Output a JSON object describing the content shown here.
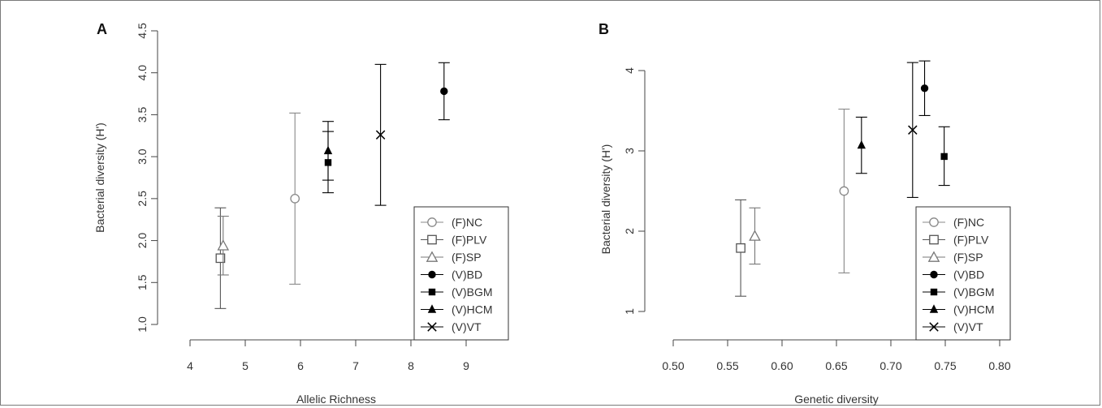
{
  "chart_data": [
    {
      "type": "scatter",
      "panel": "A",
      "xlabel": "Allelic Richness",
      "ylabel": "Bacterial diversity (H')",
      "xlim": [
        4,
        9
      ],
      "ylim": [
        1.0,
        4.5
      ],
      "xticks": [
        "4",
        "5",
        "6",
        "7",
        "8",
        "9"
      ],
      "yticks": [
        "1.0",
        "1.5",
        "2.0",
        "2.5",
        "3.0",
        "3.5",
        "4.0",
        "4.5"
      ],
      "legend_position": "bottom-right",
      "series": [
        {
          "name": "(F)NC",
          "marker": "open-circle",
          "x": 5.9,
          "y": 2.5,
          "err_low": 1.48,
          "err_high": 3.52,
          "color": "#888888"
        },
        {
          "name": "(F)PLV",
          "marker": "open-square",
          "x": 4.55,
          "y": 1.79,
          "err_low": 1.19,
          "err_high": 2.39,
          "color": "#555555"
        },
        {
          "name": "(F)SP",
          "marker": "open-triangle",
          "x": 4.6,
          "y": 1.94,
          "err_low": 1.59,
          "err_high": 2.29,
          "color": "#777777"
        },
        {
          "name": "(V)BD",
          "marker": "filled-circle",
          "x": 8.6,
          "y": 3.78,
          "err_low": 3.44,
          "err_high": 4.12,
          "color": "#000000"
        },
        {
          "name": "(V)BGM",
          "marker": "filled-square",
          "x": 6.5,
          "y": 2.93,
          "err_low": 2.57,
          "err_high": 3.3,
          "color": "#000000"
        },
        {
          "name": "(V)HCM",
          "marker": "filled-triangle",
          "x": 6.5,
          "y": 3.07,
          "err_low": 2.72,
          "err_high": 3.42,
          "color": "#000000"
        },
        {
          "name": "(V)VT",
          "marker": "cross",
          "x": 7.45,
          "y": 3.26,
          "err_low": 2.42,
          "err_high": 4.1,
          "color": "#000000"
        }
      ]
    },
    {
      "type": "scatter",
      "panel": "B",
      "xlabel": "Genetic diversity",
      "ylabel": "Bacterial diversity (H')",
      "xlim": [
        0.5,
        0.8
      ],
      "ylim": [
        1,
        4
      ],
      "xticks": [
        "0.50",
        "0.55",
        "0.60",
        "0.65",
        "0.70",
        "0.75",
        "0.80"
      ],
      "yticks": [
        "1",
        "2",
        "3",
        "4"
      ],
      "legend_position": "bottom-right",
      "series": [
        {
          "name": "(F)NC",
          "marker": "open-circle",
          "x": 0.657,
          "y": 2.5,
          "err_low": 1.48,
          "err_high": 3.52,
          "color": "#888888"
        },
        {
          "name": "(F)PLV",
          "marker": "open-square",
          "x": 0.562,
          "y": 1.79,
          "err_low": 1.19,
          "err_high": 2.39,
          "color": "#555555"
        },
        {
          "name": "(F)SP",
          "marker": "open-triangle",
          "x": 0.575,
          "y": 1.94,
          "err_low": 1.59,
          "err_high": 2.29,
          "color": "#777777"
        },
        {
          "name": "(V)BD",
          "marker": "filled-circle",
          "x": 0.731,
          "y": 3.78,
          "err_low": 3.44,
          "err_high": 4.12,
          "color": "#000000"
        },
        {
          "name": "(V)BGM",
          "marker": "filled-square",
          "x": 0.749,
          "y": 2.93,
          "err_low": 2.57,
          "err_high": 3.3,
          "color": "#000000"
        },
        {
          "name": "(V)HCM",
          "marker": "filled-triangle",
          "x": 0.673,
          "y": 3.07,
          "err_low": 2.72,
          "err_high": 3.42,
          "color": "#000000"
        },
        {
          "name": "(V)VT",
          "marker": "cross",
          "x": 0.72,
          "y": 3.26,
          "err_low": 2.42,
          "err_high": 4.1,
          "color": "#000000"
        }
      ]
    }
  ]
}
